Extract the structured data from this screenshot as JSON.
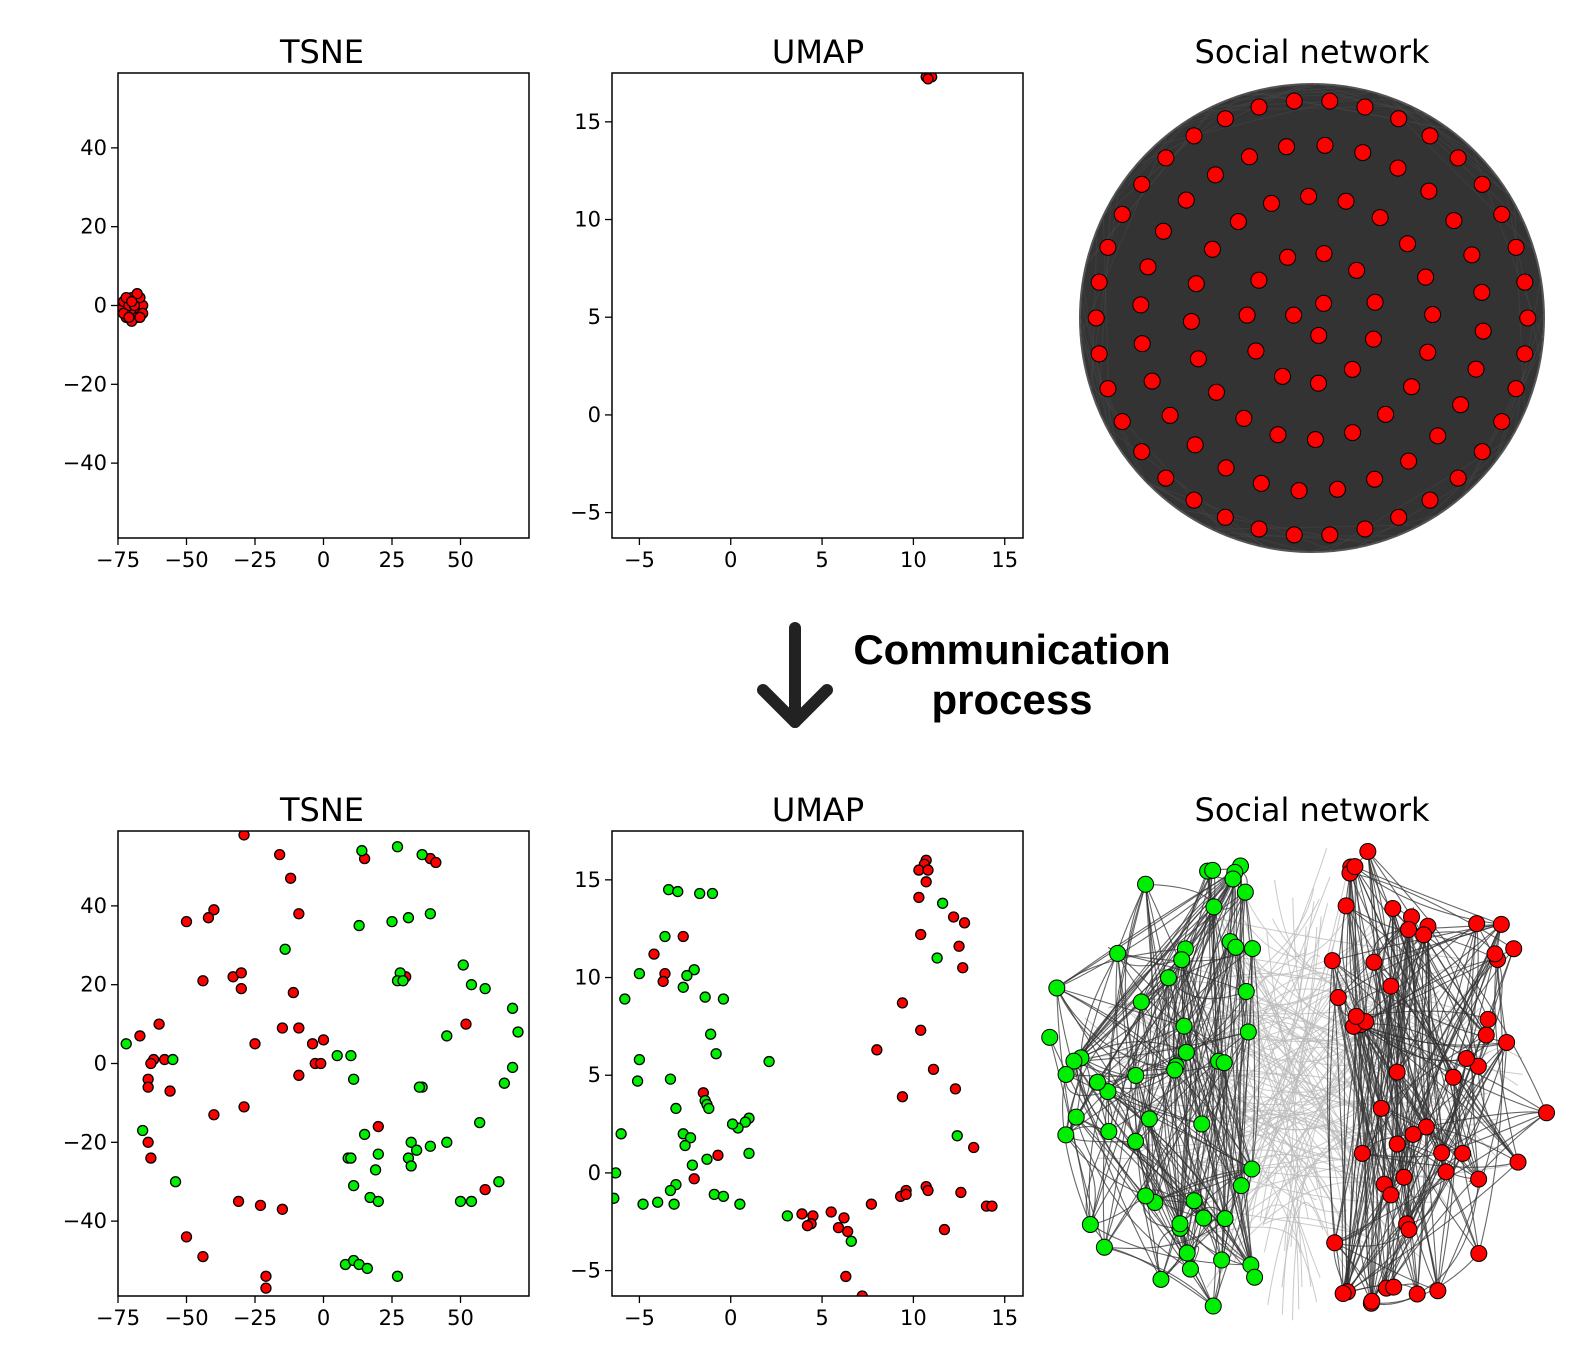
{
  "caption": {
    "line1": "Communication",
    "line2": "process"
  },
  "colors": {
    "red": "#ff0000",
    "green": "#00ee00",
    "edge_dark": "#333333",
    "edge_light": "#bbbbbb",
    "arrow": "#222222"
  },
  "chart_data": [
    {
      "id": "tsne_before",
      "type": "scatter",
      "title": "TSNE",
      "xlim": [
        -75,
        75
      ],
      "ylim": [
        -59,
        59
      ],
      "xticks": [
        -75,
        -50,
        -25,
        0,
        25,
        50
      ],
      "yticks": [
        -40,
        -20,
        0,
        20,
        40
      ],
      "tick_labels_x": [
        "−75",
        "−50",
        "−25",
        "0",
        "25",
        "50"
      ],
      "tick_labels_y": [
        "−40",
        "−20",
        "0",
        "20",
        "40"
      ],
      "series": [
        {
          "name": "red",
          "color": "#ff0000",
          "points": [
            [
              -74,
              -1
            ],
            [
              -73,
              1
            ],
            [
              -72,
              -3
            ],
            [
              -71,
              0
            ],
            [
              -70,
              2
            ],
            [
              -69,
              -2
            ],
            [
              -68,
              1
            ],
            [
              -67,
              -1
            ],
            [
              -66,
              0
            ],
            [
              -68,
              -3
            ],
            [
              -72,
              2
            ],
            [
              -70,
              -4
            ],
            [
              -67,
              2
            ],
            [
              -66,
              -2
            ],
            [
              -69,
              0
            ],
            [
              -73,
              -2
            ],
            [
              -71,
              -3
            ],
            [
              -68,
              3
            ],
            [
              -70,
              1
            ],
            [
              -67,
              -3
            ]
          ]
        }
      ]
    },
    {
      "id": "umap_before",
      "type": "scatter",
      "title": "UMAP",
      "xlim": [
        -6.5,
        16
      ],
      "ylim": [
        -6.3,
        17.5
      ],
      "xticks": [
        -5,
        0,
        5,
        10,
        15
      ],
      "yticks": [
        -5,
        0,
        5,
        10,
        15
      ],
      "tick_labels_x": [
        "−5",
        "0",
        "5",
        "10",
        "15"
      ],
      "tick_labels_y": [
        "−5",
        "0",
        "5",
        "10",
        "15"
      ],
      "series": [
        {
          "name": "red",
          "color": "#ff0000",
          "points": [
            [
              10.7,
              17.3
            ],
            [
              10.9,
              17.4
            ],
            [
              11.0,
              17.3
            ],
            [
              10.8,
              17.2
            ]
          ]
        }
      ]
    },
    {
      "id": "network_before",
      "type": "network",
      "title": "Social network",
      "nodes_red": 100,
      "nodes_green": 0
    },
    {
      "id": "tsne_after",
      "type": "scatter",
      "title": "TSNE",
      "xlim": [
        -75,
        75
      ],
      "ylim": [
        -59,
        59
      ],
      "xticks": [
        -75,
        -50,
        -25,
        0,
        25,
        50
      ],
      "yticks": [
        -40,
        -20,
        0,
        20,
        40
      ],
      "tick_labels_x": [
        "−75",
        "−50",
        "−25",
        "0",
        "25",
        "50"
      ],
      "tick_labels_y": [
        "−40",
        "−20",
        "0",
        "20",
        "40"
      ],
      "series": [
        {
          "name": "red",
          "color": "#ff0000",
          "points": [
            [
              -29,
              58
            ],
            [
              -16,
              53
            ],
            [
              -12,
              47
            ],
            [
              -40,
              39
            ],
            [
              -42,
              37
            ],
            [
              -50,
              36
            ],
            [
              -9,
              38
            ],
            [
              -44,
              21
            ],
            [
              -33,
              22
            ],
            [
              -30,
              23
            ],
            [
              -30,
              19
            ],
            [
              -11,
              18
            ],
            [
              -60,
              10
            ],
            [
              -67,
              7
            ],
            [
              -15,
              9
            ],
            [
              -9,
              9
            ],
            [
              -25,
              5
            ],
            [
              -4,
              5
            ],
            [
              0,
              6
            ],
            [
              -62,
              1
            ],
            [
              -63,
              0
            ],
            [
              -58,
              1
            ],
            [
              -64,
              -4
            ],
            [
              -64,
              -6
            ],
            [
              -56,
              -7
            ],
            [
              -9,
              -3
            ],
            [
              -3,
              0
            ],
            [
              -1,
              0
            ],
            [
              -40,
              -13
            ],
            [
              -29,
              -11
            ],
            [
              -64,
              -20
            ],
            [
              -63,
              -24
            ],
            [
              -31,
              -35
            ],
            [
              -23,
              -36
            ],
            [
              -15,
              -37
            ],
            [
              -50,
              -44
            ],
            [
              -44,
              -49
            ],
            [
              -21,
              -54
            ],
            [
              -21,
              -57
            ],
            [
              15,
              52
            ],
            [
              39,
              52
            ],
            [
              41,
              51
            ],
            [
              30,
              22
            ],
            [
              52,
              10
            ],
            [
              20,
              -16
            ],
            [
              59,
              -32
            ]
          ]
        },
        {
          "name": "green",
          "color": "#00ee00",
          "points": [
            [
              -72,
              5
            ],
            [
              -55,
              1
            ],
            [
              10,
              2
            ],
            [
              11,
              -4
            ],
            [
              5,
              2
            ],
            [
              13,
              35
            ],
            [
              14,
              54
            ],
            [
              27,
              55
            ],
            [
              36,
              53
            ],
            [
              31,
              37
            ],
            [
              39,
              38
            ],
            [
              25,
              36
            ],
            [
              -14,
              29
            ],
            [
              28,
              23
            ],
            [
              27,
              21
            ],
            [
              29,
              21
            ],
            [
              51,
              25
            ],
            [
              54,
              20
            ],
            [
              59,
              19
            ],
            [
              45,
              7
            ],
            [
              69,
              14
            ],
            [
              71,
              8
            ],
            [
              69,
              -1
            ],
            [
              66,
              -5
            ],
            [
              36,
              -6
            ],
            [
              35,
              -6
            ],
            [
              57,
              -15
            ],
            [
              15,
              -18
            ],
            [
              20,
              -23
            ],
            [
              32,
              -20
            ],
            [
              31,
              -24
            ],
            [
              32,
              -26
            ],
            [
              34,
              -22
            ],
            [
              39,
              -21
            ],
            [
              45,
              -20
            ],
            [
              9,
              -24
            ],
            [
              10,
              -24
            ],
            [
              19,
              -27
            ],
            [
              11,
              -31
            ],
            [
              17,
              -34
            ],
            [
              20,
              -35
            ],
            [
              50,
              -35
            ],
            [
              54,
              -35
            ],
            [
              64,
              -30
            ],
            [
              -54,
              -30
            ],
            [
              8,
              -51
            ],
            [
              11,
              -50
            ],
            [
              13,
              -51
            ],
            [
              16,
              -52
            ],
            [
              27,
              -54
            ],
            [
              -66,
              -17
            ]
          ]
        }
      ]
    },
    {
      "id": "umap_after",
      "type": "scatter",
      "title": "UMAP",
      "xlim": [
        -6.5,
        16
      ],
      "ylim": [
        -6.3,
        17.5
      ],
      "xticks": [
        -5,
        0,
        5,
        10,
        15
      ],
      "yticks": [
        -5,
        0,
        5,
        10,
        15
      ],
      "tick_labels_x": [
        "−5",
        "0",
        "5",
        "10",
        "15"
      ],
      "tick_labels_y": [
        "−5",
        "0",
        "5",
        "10",
        "15"
      ],
      "series": [
        {
          "name": "red",
          "color": "#ff0000",
          "points": [
            [
              10.7,
              16.0
            ],
            [
              10.6,
              15.8
            ],
            [
              10.3,
              15.5
            ],
            [
              10.8,
              15.5
            ],
            [
              10.3,
              14.1
            ],
            [
              10.7,
              14.9
            ],
            [
              10.4,
              12.2
            ],
            [
              12.2,
              13.1
            ],
            [
              12.8,
              12.8
            ],
            [
              12.5,
              11.6
            ],
            [
              12.7,
              10.5
            ],
            [
              9.4,
              8.7
            ],
            [
              10.4,
              7.3
            ],
            [
              8.0,
              6.3
            ],
            [
              11.1,
              5.3
            ],
            [
              12.3,
              4.3
            ],
            [
              9.4,
              3.9
            ],
            [
              13.3,
              1.3
            ],
            [
              -2.6,
              12.1
            ],
            [
              -4.2,
              11.2
            ],
            [
              -3.6,
              10.2
            ],
            [
              -3.7,
              9.8
            ],
            [
              -1.5,
              4.1
            ],
            [
              -0.7,
              0.9
            ],
            [
              -2.0,
              -0.3
            ],
            [
              9.6,
              -0.9
            ],
            [
              9.3,
              -1.2
            ],
            [
              9.6,
              -1.1
            ],
            [
              10.7,
              -0.7
            ],
            [
              10.8,
              -0.9
            ],
            [
              12.6,
              -1.0
            ],
            [
              7.7,
              -1.6
            ],
            [
              14.0,
              -1.7
            ],
            [
              14.3,
              -1.7
            ],
            [
              11.7,
              -2.9
            ],
            [
              3.9,
              -2.1
            ],
            [
              4.5,
              -2.2
            ],
            [
              4.4,
              -2.6
            ],
            [
              4.2,
              -2.7
            ],
            [
              5.5,
              -2.0
            ],
            [
              6.2,
              -2.3
            ],
            [
              5.9,
              -2.8
            ],
            [
              6.4,
              -3.0
            ],
            [
              6.3,
              -5.3
            ],
            [
              7.2,
              -6.3
            ]
          ]
        },
        {
          "name": "green",
          "color": "#00ee00",
          "points": [
            [
              -3.4,
              14.5
            ],
            [
              -2.9,
              14.4
            ],
            [
              -1.7,
              14.3
            ],
            [
              -1.0,
              14.3
            ],
            [
              11.6,
              13.8
            ],
            [
              -3.6,
              12.1
            ],
            [
              11.3,
              11.0
            ],
            [
              -2.0,
              10.4
            ],
            [
              -5.0,
              10.2
            ],
            [
              -2.4,
              10.1
            ],
            [
              -2.6,
              9.5
            ],
            [
              -1.4,
              9.0
            ],
            [
              -0.4,
              8.9
            ],
            [
              -5.8,
              8.9
            ],
            [
              -1.1,
              7.1
            ],
            [
              -0.8,
              6.1
            ],
            [
              -5.0,
              5.8
            ],
            [
              2.1,
              5.7
            ],
            [
              -5.1,
              4.7
            ],
            [
              -3.3,
              4.8
            ],
            [
              -1.4,
              3.7
            ],
            [
              -1.3,
              3.5
            ],
            [
              -1.2,
              3.3
            ],
            [
              -3.0,
              3.3
            ],
            [
              1.0,
              2.8
            ],
            [
              0.8,
              2.6
            ],
            [
              0.4,
              2.3
            ],
            [
              0.1,
              2.5
            ],
            [
              -6.0,
              2.0
            ],
            [
              -2.6,
              2.0
            ],
            [
              -2.2,
              1.8
            ],
            [
              -2.5,
              1.4
            ],
            [
              -1.3,
              0.7
            ],
            [
              1.0,
              1.0
            ],
            [
              12.4,
              1.9
            ],
            [
              -2.1,
              0.4
            ],
            [
              -3.0,
              -0.6
            ],
            [
              -3.3,
              -0.9
            ],
            [
              -0.9,
              -1.1
            ],
            [
              -0.4,
              -1.2
            ],
            [
              -6.4,
              -1.3
            ],
            [
              -3.1,
              -1.6
            ],
            [
              -4.0,
              -1.5
            ],
            [
              -4.8,
              -1.6
            ],
            [
              0.5,
              -1.6
            ],
            [
              3.1,
              -2.2
            ],
            [
              6.6,
              -3.5
            ],
            [
              -6.3,
              0.0
            ]
          ]
        }
      ]
    },
    {
      "id": "network_after",
      "type": "network",
      "title": "Social network",
      "nodes_red": 56,
      "nodes_green": 56
    }
  ]
}
